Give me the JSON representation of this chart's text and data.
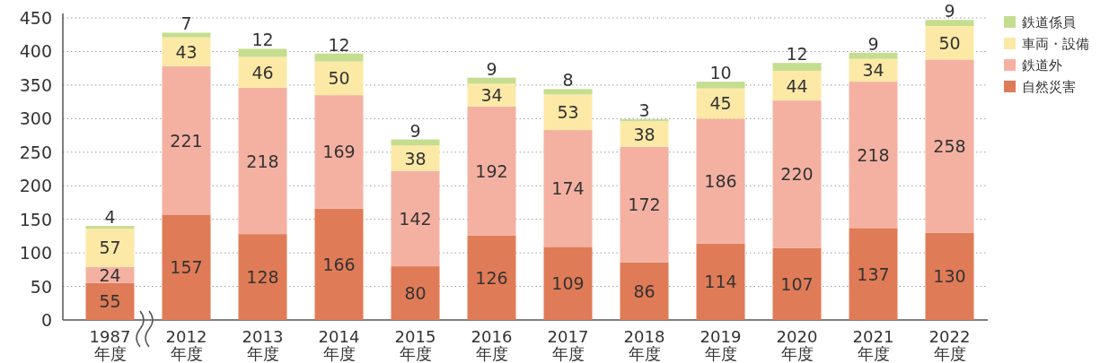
{
  "chart_data": {
    "type": "bar",
    "stacked": true,
    "categories": [
      "1987\n年度",
      "2012\n年度",
      "2013\n年度",
      "2014\n年度",
      "2015\n年度",
      "2016\n年度",
      "2017\n年度",
      "2018\n年度",
      "2019\n年度",
      "2020\n年度",
      "2021\n年度",
      "2022\n年度"
    ],
    "series": [
      {
        "name": "自然災害",
        "color": "#e07b57",
        "values": [
          55,
          157,
          128,
          166,
          80,
          126,
          109,
          86,
          114,
          107,
          137,
          130
        ]
      },
      {
        "name": "鉄道外",
        "color": "#f4b1a2",
        "values": [
          24,
          221,
          218,
          169,
          142,
          192,
          174,
          172,
          186,
          220,
          218,
          258
        ]
      },
      {
        "name": "車両・設備",
        "color": "#fde9a6",
        "values": [
          57,
          43,
          46,
          50,
          38,
          34,
          53,
          38,
          45,
          44,
          34,
          50
        ]
      },
      {
        "name": "鉄道係員",
        "color": "#c5dd8f",
        "values": [
          4,
          7,
          12,
          12,
          9,
          9,
          8,
          3,
          10,
          12,
          9,
          9
        ]
      }
    ],
    "ylim": [
      0,
      450
    ],
    "yticks": [
      0,
      50,
      100,
      150,
      200,
      250,
      300,
      350,
      400,
      450
    ],
    "grid": "y",
    "legend": "top right",
    "data_labels": true
  }
}
